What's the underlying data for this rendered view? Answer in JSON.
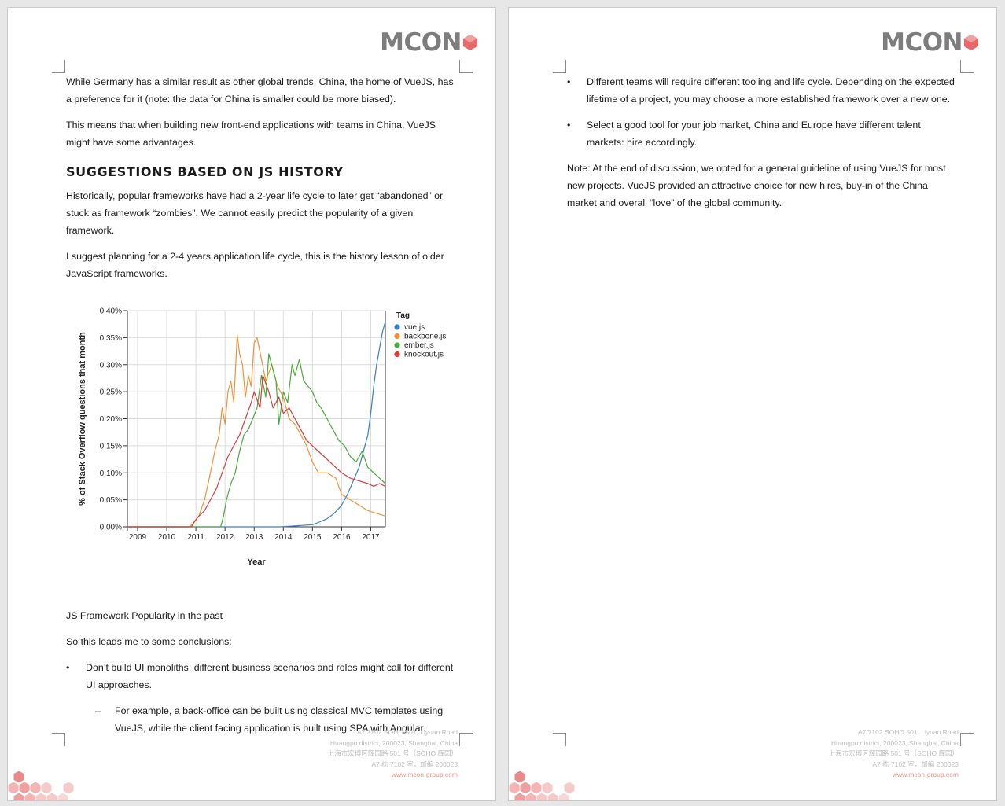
{
  "brand": {
    "logo_text": "MCON",
    "accent_color": "#e8696a"
  },
  "footer": {
    "lines": [
      "A7/7102 SOHO 501, Liyuan Road",
      "Huangpu district, 200023, Shanghai, China",
      "上海市宏博区辉园路 501 号（SOHO 辉园）",
      "A7 栋 7102 室，邮编 200023"
    ],
    "website": "www.mcon-group.com"
  },
  "page1": {
    "para1": "While Germany has a similar result as other global trends, China, the home of VueJS, has a preference for it (note: the data for China is smaller could be more biased).",
    "para2": "This means that when building new front-end applications with teams in China, VueJS might have some advantages.",
    "heading": "SUGGESTIONS BASED ON JS HISTORY",
    "para3": "Historically, popular frameworks have had a 2-year life cycle to later get “abandoned” or stuck as framework “zombies”. We cannot easily predict the popularity of a given framework.",
    "para4": "I suggest planning for a 2-4 years application life cycle, this is the history lesson of older JavaScript frameworks.",
    "caption": "JS Framework Popularity in the past",
    "para5": "So this leads me to some conclusions:",
    "bullet1_mark": "•",
    "bullet1": "Don’t build UI monoliths: different business scenarios and roles might call for different UI approaches.",
    "sub_bullet1_mark": "–",
    "sub_bullet1": "For example, a back-office can be built using classical MVC templates using VueJS, while the client facing application is built using SPA with Angular."
  },
  "page2": {
    "bullet1_mark": "•",
    "bullet1": "Different teams will require different tooling and life cycle. Depending on the expected lifetime of a project, you may choose a more established framework over a new one.",
    "bullet2_mark": "•",
    "bullet2": "Select a good tool for your job market, China and Europe have different talent markets: hire accordingly.",
    "note": "Note: At the end of discussion, we opted for a general guideline of using VueJS for most new projects. VueJS provided an attractive choice for new hires, buy-in of the China market and overall “love” of the global community."
  },
  "chart_data": {
    "type": "line",
    "title": "",
    "xlabel": "Year",
    "ylabel": "% of Stack Overflow questions that month",
    "xlim": [
      2008.65,
      2017.5
    ],
    "ylim": [
      0,
      0.4
    ],
    "x_ticks": [
      2009,
      2010,
      2011,
      2012,
      2013,
      2014,
      2015,
      2016,
      2017
    ],
    "x_tick_labels": [
      "2009",
      "2010",
      "2011",
      "2012",
      "2013",
      "2014",
      "2015",
      "2016",
      "2017"
    ],
    "y_ticks": [
      0,
      0.05,
      0.1,
      0.15,
      0.2,
      0.25,
      0.3,
      0.35,
      0.4
    ],
    "y_tick_labels": [
      "0.00%",
      "0.05%",
      "0.10%",
      "0.15%",
      "0.20%",
      "0.25%",
      "0.30%",
      "0.35%",
      "0.40%"
    ],
    "grid": true,
    "legend_title": "Tag",
    "legend_position": "top-right",
    "series": [
      {
        "name": "vue.js",
        "color": "#3b7fc4",
        "x": [
          2008.65,
          2013.9,
          2014.5,
          2015.0,
          2015.2,
          2015.5,
          2015.75,
          2016.0,
          2016.2,
          2016.4,
          2016.6,
          2016.75,
          2016.9,
          2017.0,
          2017.1,
          2017.2,
          2017.3,
          2017.4,
          2017.5
        ],
        "y": [
          0,
          0,
          0.002,
          0.004,
          0.008,
          0.015,
          0.025,
          0.04,
          0.06,
          0.085,
          0.11,
          0.14,
          0.17,
          0.21,
          0.26,
          0.3,
          0.33,
          0.36,
          0.38
        ]
      },
      {
        "name": "backbone.js",
        "color": "#f0923a",
        "x": [
          2008.65,
          2010.75,
          2010.9,
          2011.1,
          2011.3,
          2011.5,
          2011.65,
          2011.8,
          2011.9,
          2012.0,
          2012.1,
          2012.2,
          2012.3,
          2012.42,
          2012.5,
          2012.6,
          2012.7,
          2012.8,
          2012.9,
          2013.0,
          2013.1,
          2013.25,
          2013.4,
          2013.6,
          2013.8,
          2014.0,
          2014.2,
          2014.4,
          2014.6,
          2014.8,
          2015.0,
          2015.2,
          2015.5,
          2015.8,
          2016.0,
          2016.3,
          2016.6,
          2016.9,
          2017.2,
          2017.5
        ],
        "y": [
          0,
          0,
          0.005,
          0.02,
          0.05,
          0.1,
          0.14,
          0.17,
          0.22,
          0.19,
          0.25,
          0.27,
          0.23,
          0.355,
          0.32,
          0.3,
          0.24,
          0.28,
          0.26,
          0.34,
          0.35,
          0.31,
          0.27,
          0.3,
          0.26,
          0.24,
          0.2,
          0.19,
          0.17,
          0.15,
          0.12,
          0.1,
          0.1,
          0.09,
          0.06,
          0.05,
          0.04,
          0.03,
          0.025,
          0.02
        ]
      },
      {
        "name": "ember.js",
        "color": "#4aaa3a",
        "x": [
          2008.65,
          2011.85,
          2011.95,
          2012.05,
          2012.2,
          2012.35,
          2012.5,
          2012.65,
          2012.8,
          2012.95,
          2013.1,
          2013.25,
          2013.4,
          2013.5,
          2013.6,
          2013.75,
          2013.85,
          2014.0,
          2014.15,
          2014.3,
          2014.4,
          2014.55,
          2014.7,
          2014.85,
          2015.0,
          2015.15,
          2015.3,
          2015.5,
          2015.7,
          2015.9,
          2016.1,
          2016.3,
          2016.5,
          2016.7,
          2016.9,
          2017.1,
          2017.3,
          2017.5
        ],
        "y": [
          0,
          0,
          0.02,
          0.05,
          0.08,
          0.1,
          0.14,
          0.17,
          0.18,
          0.2,
          0.22,
          0.28,
          0.24,
          0.32,
          0.3,
          0.27,
          0.19,
          0.25,
          0.23,
          0.3,
          0.28,
          0.31,
          0.27,
          0.26,
          0.25,
          0.23,
          0.22,
          0.2,
          0.18,
          0.16,
          0.15,
          0.13,
          0.12,
          0.14,
          0.11,
          0.1,
          0.09,
          0.08
        ]
      },
      {
        "name": "knockout.js",
        "color": "#d63b3b",
        "x": [
          2008.65,
          2010.85,
          2010.95,
          2011.1,
          2011.3,
          2011.5,
          2011.7,
          2011.9,
          2012.1,
          2012.3,
          2012.5,
          2012.7,
          2012.9,
          2013.0,
          2013.2,
          2013.3,
          2013.5,
          2013.65,
          2013.85,
          2014.0,
          2014.2,
          2014.4,
          2014.6,
          2014.8,
          2015.0,
          2015.2,
          2015.4,
          2015.6,
          2015.8,
          2016.0,
          2016.3,
          2016.6,
          2016.9,
          2017.1,
          2017.3,
          2017.5
        ],
        "y": [
          0,
          0,
          0.01,
          0.02,
          0.03,
          0.05,
          0.07,
          0.1,
          0.13,
          0.15,
          0.17,
          0.2,
          0.23,
          0.25,
          0.22,
          0.28,
          0.25,
          0.22,
          0.24,
          0.21,
          0.22,
          0.2,
          0.18,
          0.16,
          0.15,
          0.14,
          0.13,
          0.12,
          0.11,
          0.1,
          0.09,
          0.085,
          0.08,
          0.075,
          0.08,
          0.075
        ]
      }
    ]
  }
}
